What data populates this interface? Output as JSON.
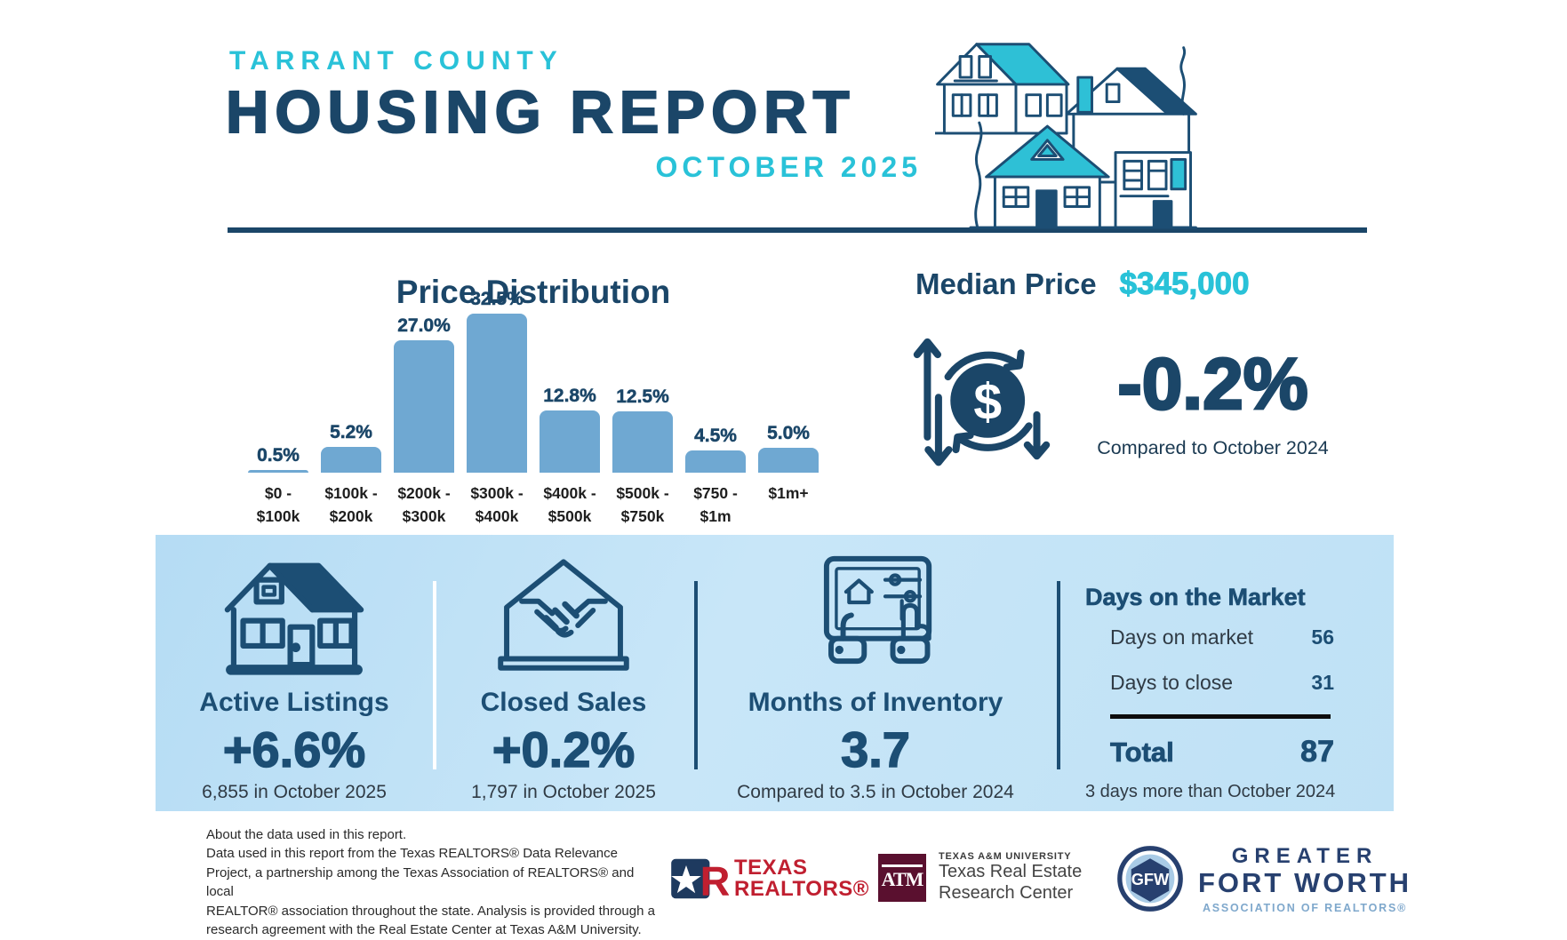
{
  "header": {
    "eyebrow": "TARRANT COUNTY",
    "title": "HOUSING REPORT",
    "subtitle": "OCTOBER 2025"
  },
  "chart_data": {
    "type": "bar",
    "title": "Price Distribution",
    "categories": [
      "$0 -\n$100k",
      "$100k -\n$200k",
      "$200k -\n$300k",
      "$300k -\n$400k",
      "$400k -\n$500k",
      "$500k -\n$750k",
      "$750 -\n$1m",
      "$1m+"
    ],
    "values": [
      0.5,
      5.2,
      27.0,
      32.5,
      12.8,
      12.5,
      4.5,
      5.0
    ],
    "value_labels": [
      "0.5%",
      "5.2%",
      "27.0%",
      "32.5%",
      "12.8%",
      "12.5%",
      "4.5%",
      "5.0%"
    ],
    "xlabel": "",
    "ylabel": "",
    "ylim": [
      0,
      35
    ],
    "grid": false,
    "legend": null,
    "bar_color": "#6FA8D2"
  },
  "median_price": {
    "label": "Median Price",
    "value": "$345,000",
    "change": "-0.2%",
    "comparison": "Compared to October 2024",
    "icon": "dollar-cycle-icon"
  },
  "stats": [
    {
      "icon": "house-icon",
      "title": "Active Listings",
      "value": "+6.6%",
      "caption": "6,855 in October 2025"
    },
    {
      "icon": "handshake-house-icon",
      "title": "Closed Sales",
      "value": "+0.2%",
      "caption": "1,797 in October 2025"
    },
    {
      "icon": "tablet-inventory-icon",
      "title": "Months of Inventory",
      "value": "3.7",
      "caption": "Compared to 3.5 in October 2024"
    }
  ],
  "days_on_market": {
    "title": "Days on the Market",
    "rows": [
      {
        "label": "Days on market",
        "value": "56"
      },
      {
        "label": "Days to close",
        "value": "31"
      }
    ],
    "total_label": "Total",
    "total_value": "87",
    "caption": "3 days more than October 2024"
  },
  "footer": {
    "about_title": "About the data used in this report.",
    "about_body": "Data used in this report from the Texas REALTORS® Data Relevance\nProject, a partnership among the Texas Association of REALTORS® and local\nREALTOR® association throughout the state. Analysis is provided through a\nresearch agreement with the Real Estate Center at Texas A&M University.",
    "texas_realtors": {
      "line1": "TEXAS",
      "line2": "REALTORS®"
    },
    "tamu": {
      "monogram": "ATM",
      "university": "TEXAS A&M UNIVERSITY",
      "center_line1": "Texas Real Estate",
      "center_line2": "Research Center"
    },
    "gfw": {
      "badge": "GFW",
      "line1": "GREATER",
      "line2": "FORT WORTH",
      "line3": "ASSOCIATION OF REALTORS®"
    }
  },
  "colors": {
    "accent_cyan": "#29C2D8",
    "navy": "#1B4668",
    "stat_navy": "#1C4E74",
    "bar_blue": "#6FA8D2",
    "band_bg": "#BEE0F4",
    "realtors_red": "#C01F30",
    "tamu_maroon": "#5A102F",
    "gfw_navy": "#27406F",
    "gfw_light_blue": "#7FA8CC"
  }
}
